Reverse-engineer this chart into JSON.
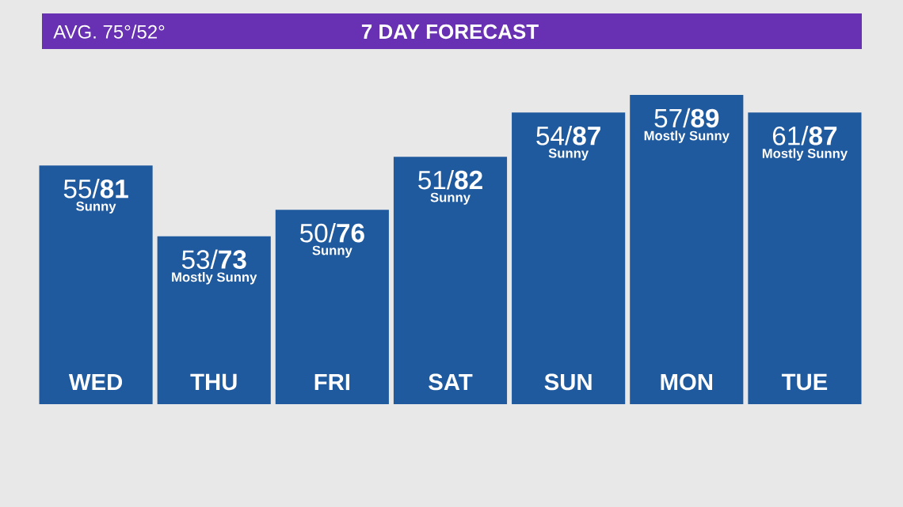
{
  "chart_data": {
    "type": "bar",
    "title": "7 DAY FORECAST",
    "subtitle": "AVG. 75°/52°",
    "categories": [
      "WED",
      "THU",
      "FRI",
      "SAT",
      "SUN",
      "MON",
      "TUE"
    ],
    "values": [
      81,
      73,
      76,
      82,
      87,
      89,
      87
    ],
    "color": "#1f5a9e",
    "value_labels": [
      "55/**81**",
      "53/**73**",
      "50/**76**",
      "51/**82**",
      "54/**87**",
      "57/**89**",
      "61/**87**"
    ],
    "annotations": [
      {
        "text": "Sunny",
        "x": "WED",
        "y": 81
      },
      {
        "text": "Mostly Sunny",
        "x": "THU",
        "y": 73
      },
      {
        "text": "Sunny",
        "x": "FRI",
        "y": 76
      },
      {
        "text": "Sunny",
        "x": "SAT",
        "y": 82
      },
      {
        "text": "Sunny",
        "x": "SUN",
        "y": 87
      },
      {
        "text": "Mostly Sunny",
        "x": "MON",
        "y": 89
      },
      {
        "text": "Mostly Sunny",
        "x": "TUE",
        "y": 87
      }
    ],
    "ylim": [
      54,
      89
    ],
    "tick_labels": "x"
  }
}
